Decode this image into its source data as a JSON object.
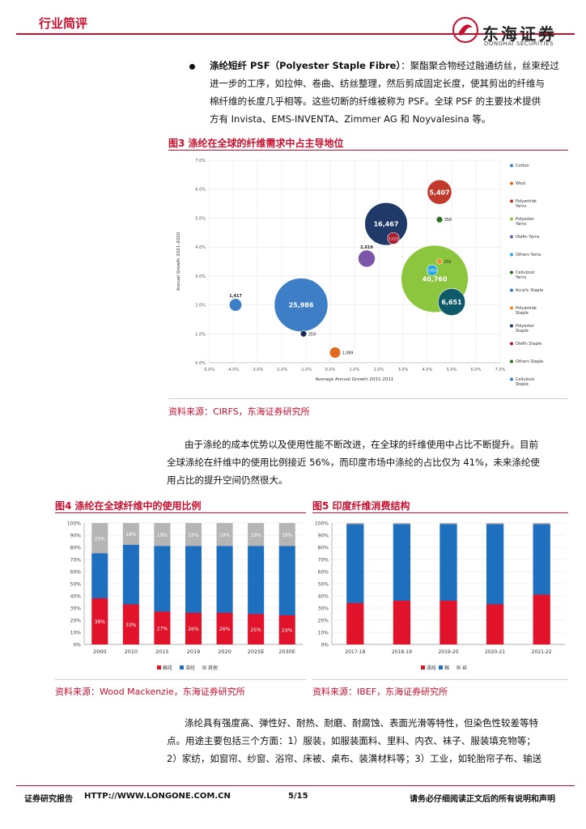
{
  "header": {
    "section": "行业简评",
    "logo_cn": "东海证券",
    "logo_en": "DONGHAI SECURITIES"
  },
  "bullet": {
    "term": "涤纶短纤 PSF（Polyester Staple Fibre）",
    "lines": [
      "：聚酯聚合物经过融通纺丝，丝束经过",
      "进一步的工序，如拉伸、卷曲、纺丝整理，然后剪成固定长度，使其剪出的纤维与",
      "棉纤维的长度几乎相等。这些切断的纤维被称为 PSF。全球 PSF 的主要技术提供",
      "方有 Invista、EMS-INVENTA、Zimmer AG 和 Noyvalesina 等。"
    ]
  },
  "fig3": {
    "title": "图3  涤纶在全球的纤维需求中占主导地位",
    "source": "资料来源：CIRFS，东海证券研究所"
  },
  "paragraph1": [
    "由于涤纶的成本优势以及使用性能不断改进，在全球的纤维使用中占比不断提升。目前",
    "全球涤纶在纤维中的使用比例接近 56%，而印度市场中涤纶的占比仅为 41%，未来涤纶使",
    "用占比的提升空间仍然很大。"
  ],
  "fig4": {
    "title": "图4  涤纶在全球纤维中的使用比例",
    "source": "资料来源：Wood Mackenzie，东海证券研究所"
  },
  "fig5": {
    "title": "图5  印度纤维消费结构",
    "source": "资料来源：IBEF，东海证券研究所"
  },
  "paragraph2": [
    "涤纶具有强度高、弹性好、耐热、耐磨、耐腐蚀、表面光滑等特性，但染色性较差等特",
    "点。用途主要包括三个方面：1）服装，如服装面料、里料、内衣、袜子、服装填充物等；",
    "2）家纺，如窗帘、纱窗、浴帘、床被、桌布、装潢材料等；3）工业，如轮胎帘子布、输送"
  ],
  "footer": {
    "left": "证券研究报告",
    "url": "HTTP://WWW.LONGONE.COM.CN",
    "page": "5/15",
    "right": "请务必仔细阅读正文后的所有说明和声明"
  },
  "chart_data": [
    {
      "type": "scatter",
      "title": "",
      "xlabel": "Average Annual Growth 2011-2011",
      "ylabel": "Annual Growth 2021-2020",
      "xlim": [
        -5,
        7
      ],
      "ylim": [
        0,
        7
      ],
      "xticks": [
        "-5.0%",
        "-4.0%",
        "-3.0%",
        "-2.0%",
        "-1.0%",
        "0.0%",
        "1.0%",
        "2.0%",
        "3.0%",
        "4.0%",
        "5.0%",
        "6.0%",
        "7.0%"
      ],
      "yticks": [
        "0.0%",
        "1.0%",
        "2.0%",
        "3.0%",
        "4.0%",
        "5.0%",
        "6.0%",
        "7.0%"
      ],
      "legend": [
        "Cotton",
        "Wool",
        "Polyamide Yarns",
        "Polyester Yarns",
        "Olefin Yarns",
        "Others Yarns",
        "Cellulosic Yarns",
        "Acrylic Staple",
        "Polyamide Staple",
        "Polyester Staple",
        "Olefin Staple",
        "Others Staple",
        "Cellulosic Staple"
      ],
      "points": [
        {
          "x": 4.5,
          "y": 5.9,
          "size": 5407,
          "label": "5,407",
          "color": "#c0392b"
        },
        {
          "x": 4.5,
          "y": 4.95,
          "size": 356,
          "label": "356",
          "color": "#2c6e1f"
        },
        {
          "x": 2.3,
          "y": 4.8,
          "size": 16467,
          "label": "16,467",
          "color": "#1f3a68"
        },
        {
          "x": 2.6,
          "y": 4.3,
          "size": 1223,
          "label": "1223",
          "color": "#a81c2e"
        },
        {
          "x": 1.5,
          "y": 3.6,
          "size": 2619,
          "label": "2,619",
          "color": "#7b55a8"
        },
        {
          "x": 4.5,
          "y": 3.5,
          "size": 250,
          "label": "250",
          "color": "#f08a24"
        },
        {
          "x": 4.2,
          "y": 3.2,
          "size": 1053,
          "label": "1053",
          "color": "#2aa7d8"
        },
        {
          "x": 4.3,
          "y": 2.9,
          "size": 40760,
          "label": "40,760",
          "color": "#8cc63e"
        },
        {
          "x": 5.0,
          "y": 2.1,
          "size": 6651,
          "label": "6,651",
          "color": "#0e5a6a"
        },
        {
          "x": -3.9,
          "y": 2.0,
          "size": 1417,
          "label": "1,417",
          "color": "#3d7ec6"
        },
        {
          "x": -1.2,
          "y": 2.0,
          "size": 25986,
          "label": "25,986",
          "color": "#3d7ec6"
        },
        {
          "x": -1.1,
          "y": 1.0,
          "size": 359,
          "label": "359",
          "color": "#1f2a55"
        },
        {
          "x": 0.2,
          "y": 0.35,
          "size": 1089,
          "label": "1,089",
          "color": "#e06b1f"
        }
      ]
    },
    {
      "type": "bar",
      "categories": [
        "2000",
        "2010",
        "2015",
        "2019",
        "2020",
        "2025E",
        "2030E"
      ],
      "yticks": [
        "0%",
        "10%",
        "20%",
        "30%",
        "40%",
        "50%",
        "60%",
        "70%",
        "80%",
        "90%",
        "100%"
      ],
      "series": [
        {
          "name": "棉花",
          "values": [
            38,
            33,
            27,
            26,
            26,
            25,
            24
          ],
          "labels": [
            "38%",
            "33%",
            "27%",
            "26%",
            "26%",
            "25%",
            "24%"
          ],
          "color": "#e0132a"
        },
        {
          "name": "涤纶",
          "values": [
            37,
            49,
            54,
            55,
            55,
            56,
            57
          ],
          "labels": [
            "",
            "",
            "",
            "",
            "",
            "",
            ""
          ],
          "color": "#1f6fbf"
        },
        {
          "name": "其他",
          "values": [
            25,
            18,
            19,
            19,
            19,
            19,
            19
          ],
          "labels": [
            "25%",
            "18%",
            "19%",
            "19%",
            "19%",
            "19%",
            "19%"
          ],
          "color": "#b5b5b5"
        }
      ]
    },
    {
      "type": "bar",
      "categories": [
        "2017-18",
        "2018-19",
        "2019-20",
        "2020-21",
        "2021-22"
      ],
      "yticks": [
        "0%",
        "10%",
        "20%",
        "30%",
        "40%",
        "50%",
        "60%",
        "70%",
        "80%",
        "90%",
        "100%"
      ],
      "series": [
        {
          "name": "涤纶",
          "values": [
            34,
            36,
            36,
            33,
            41
          ],
          "color": "#e0132a"
        },
        {
          "name": "棉",
          "values": [
            65,
            63,
            63,
            66,
            58
          ],
          "color": "#1f6fbf"
        },
        {
          "name": "丝",
          "values": [
            1,
            1,
            1,
            1,
            1
          ],
          "color": "#b5b5b5"
        }
      ]
    }
  ]
}
